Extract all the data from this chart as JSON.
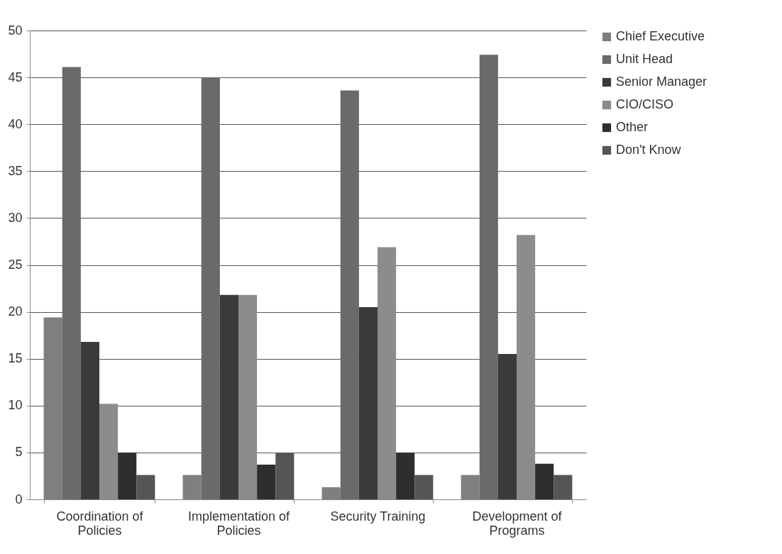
{
  "chart_data": {
    "type": "bar",
    "categories": [
      "Coordination of Policies",
      "Implementation of Policies",
      "Security Training",
      "Development of Programs"
    ],
    "series": [
      {
        "name": "Chief Executive",
        "color": "#7f7f7f",
        "values": [
          19.4,
          2.6,
          1.3,
          2.6
        ]
      },
      {
        "name": "Unit Head",
        "color": "#6a6a6a",
        "values": [
          46.1,
          45.0,
          43.6,
          47.4
        ]
      },
      {
        "name": "Senior Manager",
        "color": "#3a3a3a",
        "values": [
          16.8,
          21.8,
          20.5,
          15.5
        ]
      },
      {
        "name": "CIO/CISO",
        "color": "#8c8c8c",
        "values": [
          10.2,
          21.8,
          26.9,
          28.2
        ]
      },
      {
        "name": "Other",
        "color": "#2e2e2e",
        "values": [
          5.0,
          3.7,
          5.0,
          3.8
        ]
      },
      {
        "name": "Don't Know",
        "color": "#555555",
        "values": [
          2.6,
          5.0,
          2.6,
          2.6
        ]
      }
    ],
    "ylim": [
      0,
      50
    ],
    "yticks": [
      0,
      5,
      10,
      15,
      20,
      25,
      30,
      35,
      40,
      45,
      50
    ],
    "grid": "y",
    "legend": "right"
  }
}
